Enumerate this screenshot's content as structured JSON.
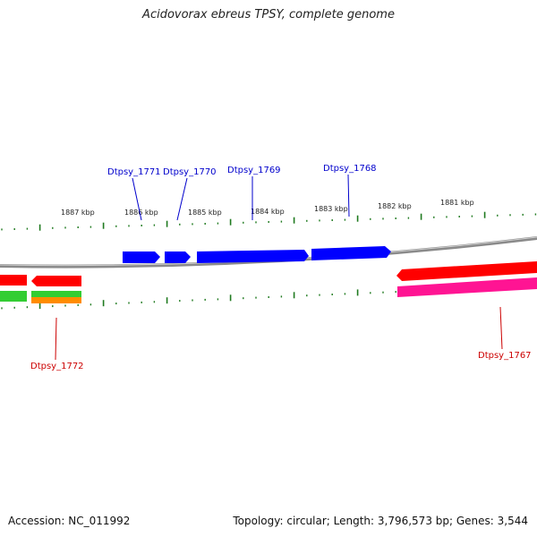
{
  "title": "Acidovorax ebreus TPSY, complete genome",
  "footer": {
    "accession": "Accession: NC_011992",
    "topology": "Topology: circular; Length: 3,796,573 bp; Genes: 3,544"
  },
  "colors": {
    "forward_cds": "#0000ff",
    "reverse_cds": "#ff0000",
    "ticks": "#228b22",
    "backbone": "#7f7f7f",
    "pink_track": "#ff1493",
    "green_track": "#32cd32",
    "orange_track": "#ff8c00"
  },
  "ruler": {
    "unit": "kbp",
    "labels": [
      "1887 kbp",
      "1886 kbp",
      "1885 kbp",
      "1884 kbp",
      "1883 kbp",
      "1882 kbp",
      "1881 kbp"
    ]
  },
  "genes": [
    {
      "name": "Dtpsy_1771",
      "strand": "forward"
    },
    {
      "name": "Dtpsy_1770",
      "strand": "forward"
    },
    {
      "name": "Dtpsy_1769",
      "strand": "forward"
    },
    {
      "name": "Dtpsy_1768",
      "strand": "forward"
    },
    {
      "name": "Dtpsy_1772",
      "strand": "reverse"
    },
    {
      "name": "Dtpsy_1767",
      "strand": "reverse"
    }
  ]
}
